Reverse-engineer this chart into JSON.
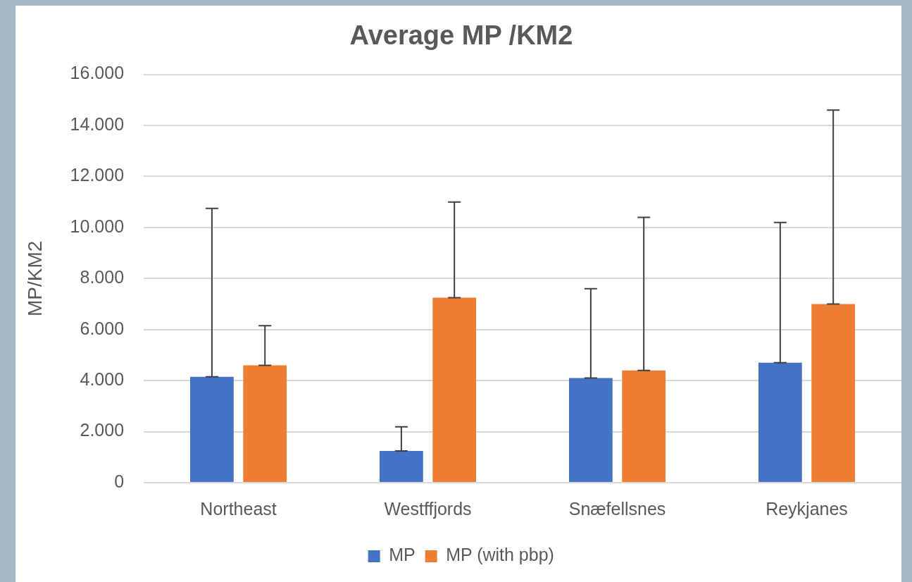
{
  "chart_data": {
    "type": "bar",
    "title": "Average MP /KM2",
    "ylabel": "MP/KM2",
    "categories": [
      "Northeast",
      "Westffjords",
      "Snæfellsnes",
      "Reykjanes"
    ],
    "series": [
      {
        "name": "MP",
        "color": "#4472c4",
        "values": [
          4150,
          1240,
          4100,
          4700
        ],
        "errors": [
          [
            4150,
            10750
          ],
          [
            1240,
            2190
          ],
          [
            4100,
            7600
          ],
          [
            4700,
            10200
          ]
        ]
      },
      {
        "name": "MP (with pbp)",
        "color": "#ed7d31",
        "values": [
          4600,
          7250,
          4400,
          7000
        ],
        "errors": [
          [
            4600,
            6150
          ],
          [
            7250,
            11000
          ],
          [
            4400,
            10400
          ],
          [
            7000,
            14600
          ]
        ]
      }
    ],
    "ylim": [
      0,
      16000
    ],
    "yticks": [
      0,
      {
        "value": 2000,
        "label": "2.000"
      },
      {
        "value": 4000,
        "label": "4.000"
      },
      {
        "value": 6000,
        "label": "6.000"
      },
      {
        "value": 8000,
        "label": "8.000"
      },
      {
        "value": 10000,
        "label": "10.000"
      },
      {
        "value": 12000,
        "label": "12.000"
      },
      {
        "value": 14000,
        "label": "14.000"
      },
      {
        "value": 16000,
        "label": "16.000"
      }
    ],
    "grid": "y",
    "legend": "bottom"
  }
}
